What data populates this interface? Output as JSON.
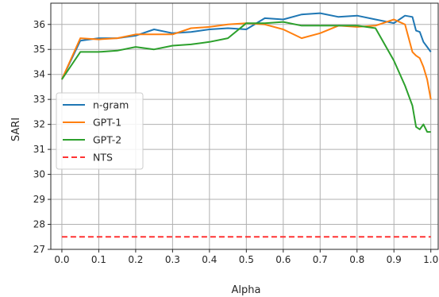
{
  "chart_data": {
    "type": "line",
    "xlabel": "Alpha",
    "ylabel": "SARI",
    "xlim": [
      -0.03,
      1.02
    ],
    "ylim": [
      27.0,
      36.85
    ],
    "xticks": [
      0.0,
      0.1,
      0.2,
      0.3,
      0.4,
      0.5,
      0.6,
      0.7,
      0.8,
      0.9,
      1.0
    ],
    "xtick_labels": [
      "0.0",
      "0.1",
      "0.2",
      "0.3",
      "0.4",
      "0.5",
      "0.6",
      "0.7",
      "0.8",
      "0.9",
      "1.0"
    ],
    "yticks": [
      27,
      28,
      29,
      30,
      31,
      32,
      33,
      34,
      35,
      36
    ],
    "ytick_labels": [
      "27",
      "28",
      "29",
      "30",
      "31",
      "32",
      "33",
      "34",
      "35",
      "36"
    ],
    "grid": true,
    "legend_position": "center-left",
    "series": [
      {
        "name": "n-gram",
        "color": "#1f77b4",
        "style": "solid",
        "x": [
          0.0,
          0.05,
          0.1,
          0.15,
          0.2,
          0.25,
          0.3,
          0.35,
          0.4,
          0.45,
          0.5,
          0.55,
          0.6,
          0.65,
          0.7,
          0.75,
          0.8,
          0.85,
          0.9,
          0.93,
          0.95,
          0.96,
          0.97,
          0.98,
          0.99,
          1.0
        ],
        "values": [
          33.8,
          35.35,
          35.45,
          35.45,
          35.55,
          35.8,
          35.65,
          35.7,
          35.8,
          35.85,
          35.8,
          36.25,
          36.2,
          36.4,
          36.45,
          36.3,
          36.35,
          36.2,
          36.05,
          36.35,
          36.3,
          35.75,
          35.7,
          35.3,
          35.1,
          34.9
        ]
      },
      {
        "name": "GPT-1",
        "color": "#ff7f0e",
        "style": "solid",
        "x": [
          0.0,
          0.05,
          0.1,
          0.15,
          0.2,
          0.25,
          0.3,
          0.35,
          0.4,
          0.45,
          0.5,
          0.55,
          0.6,
          0.65,
          0.7,
          0.75,
          0.8,
          0.85,
          0.9,
          0.93,
          0.95,
          0.96,
          0.97,
          0.98,
          0.99,
          1.0
        ],
        "values": [
          33.8,
          35.45,
          35.4,
          35.45,
          35.6,
          35.6,
          35.6,
          35.85,
          35.9,
          36.0,
          36.05,
          36.0,
          35.8,
          35.45,
          35.65,
          35.95,
          35.9,
          35.95,
          36.2,
          36.0,
          34.9,
          34.75,
          34.65,
          34.3,
          33.8,
          33.0
        ]
      },
      {
        "name": "GPT-2",
        "color": "#2ca02c",
        "style": "solid",
        "x": [
          0.0,
          0.05,
          0.1,
          0.15,
          0.2,
          0.25,
          0.3,
          0.35,
          0.4,
          0.45,
          0.5,
          0.55,
          0.6,
          0.65,
          0.7,
          0.75,
          0.8,
          0.85,
          0.9,
          0.93,
          0.95,
          0.96,
          0.97,
          0.98,
          0.99,
          1.0
        ],
        "values": [
          33.8,
          34.9,
          34.9,
          34.95,
          35.1,
          35.0,
          35.15,
          35.2,
          35.3,
          35.45,
          36.05,
          36.05,
          36.1,
          35.95,
          35.95,
          35.95,
          35.95,
          35.85,
          34.55,
          33.55,
          32.75,
          31.9,
          31.8,
          32.0,
          31.7,
          31.7
        ]
      },
      {
        "name": "NTS",
        "color": "#ff3333",
        "style": "dashed",
        "x": [
          0.0,
          1.0
        ],
        "values": [
          27.5,
          27.5
        ]
      }
    ]
  }
}
